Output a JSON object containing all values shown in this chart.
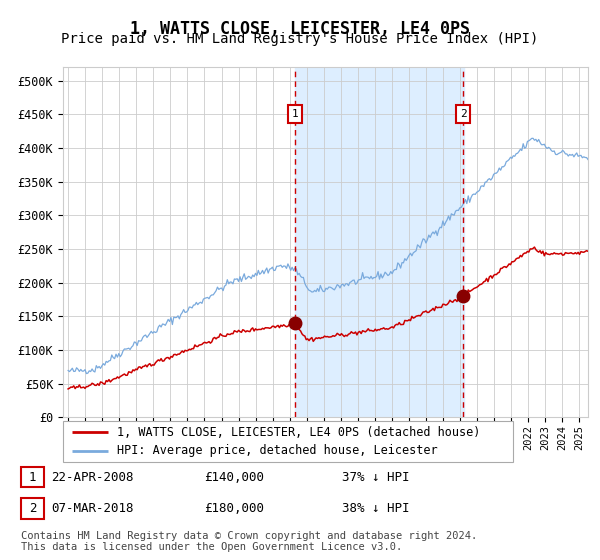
{
  "title": "1, WATTS CLOSE, LEICESTER, LE4 0PS",
  "subtitle": "Price paid vs. HM Land Registry's House Price Index (HPI)",
  "title_fontsize": 12,
  "subtitle_fontsize": 10,
  "ylabel_ticks": [
    "£0",
    "£50K",
    "£100K",
    "£150K",
    "£200K",
    "£250K",
    "£300K",
    "£350K",
    "£400K",
    "£450K",
    "£500K"
  ],
  "ytick_values": [
    0,
    50000,
    100000,
    150000,
    200000,
    250000,
    300000,
    350000,
    400000,
    450000,
    500000
  ],
  "ylim": [
    0,
    520000
  ],
  "xlim_start": 1994.7,
  "xlim_end": 2025.5,
  "background_color": "#ffffff",
  "plot_bg_color": "#ffffff",
  "grid_color": "#cccccc",
  "shaded_region_color": "#ddeeff",
  "shaded_x_start": 2008.3,
  "shaded_x_end": 2018.2,
  "hpi_line_color": "#7aaadd",
  "price_line_color": "#cc0000",
  "marker_color": "#880000",
  "vline_color": "#cc0000",
  "vline_style": "--",
  "purchase1_x": 2008.31,
  "purchase1_y": 140000,
  "purchase2_x": 2018.18,
  "purchase2_y": 180000,
  "legend_label1": "1, WATTS CLOSE, LEICESTER, LE4 0PS (detached house)",
  "legend_label2": "HPI: Average price, detached house, Leicester",
  "table_rows": [
    {
      "num": "1",
      "date": "22-APR-2008",
      "price": "£140,000",
      "change": "37% ↓ HPI"
    },
    {
      "num": "2",
      "date": "07-MAR-2018",
      "price": "£180,000",
      "change": "38% ↓ HPI"
    }
  ],
  "footnote": "Contains HM Land Registry data © Crown copyright and database right 2024.\nThis data is licensed under the Open Government Licence v3.0.",
  "footnote_fontsize": 7.5,
  "table_fontsize": 9,
  "legend_fontsize": 9
}
